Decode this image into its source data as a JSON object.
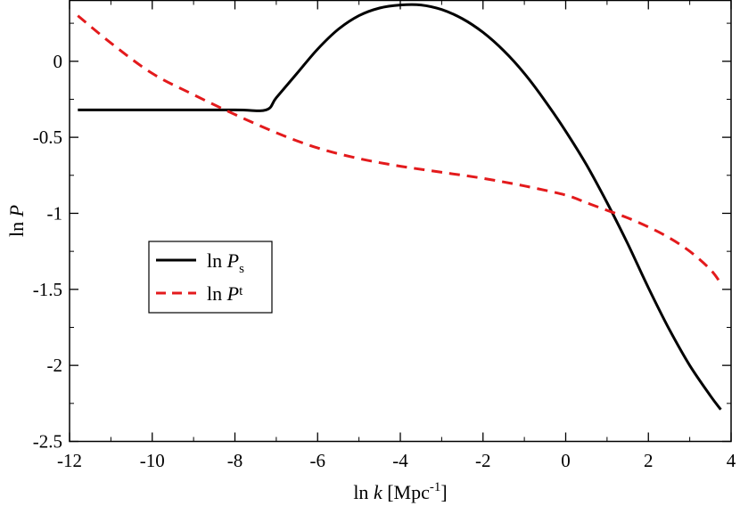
{
  "chart_data": {
    "type": "line",
    "xlabel_prefix": "ln ",
    "xlabel_var": "k",
    "xlabel_unit": " [Mpc",
    "xlabel_exp": "-1",
    "xlabel_close": "]",
    "ylabel_prefix": "ln ",
    "ylabel_var": "P",
    "xlim": [
      -12,
      4
    ],
    "ylim": [
      -2.5,
      0.4
    ],
    "x_ticks": [
      -12,
      -10,
      -8,
      -6,
      -4,
      -2,
      0,
      2,
      4
    ],
    "x_tick_labels": [
      "-12",
      "-10",
      "-8",
      "-6",
      "-4",
      "-2",
      "0",
      "2",
      "4"
    ],
    "y_ticks": [
      -2.5,
      -2,
      -1.5,
      -1,
      -0.5,
      0
    ],
    "y_tick_labels": [
      "-2.5",
      "-2",
      "-1.5",
      "-1",
      "-0.5",
      "0"
    ],
    "grid": false,
    "legend_position": "left-middle",
    "series": [
      {
        "name_prefix": "ln ",
        "name_var": "P",
        "name_sub": "s",
        "color": "#000000",
        "style": "solid",
        "x": [
          -11.8,
          -10,
          -8,
          -7.25,
          -7,
          -6.5,
          -6,
          -5.5,
          -5,
          -4.5,
          -4,
          -3.5,
          -3,
          -2.5,
          -2,
          -1.5,
          -1,
          -0.5,
          0,
          0.5,
          1,
          1.5,
          2,
          2.5,
          3,
          3.5,
          3.75
        ],
        "y": [
          -0.32,
          -0.32,
          -0.32,
          -0.32,
          -0.24,
          -0.08,
          0.08,
          0.21,
          0.3,
          0.35,
          0.37,
          0.37,
          0.34,
          0.28,
          0.19,
          0.07,
          -0.08,
          -0.26,
          -0.46,
          -0.68,
          -0.93,
          -1.2,
          -1.49,
          -1.76,
          -2.0,
          -2.2,
          -2.29
        ]
      },
      {
        "name_prefix": "ln ",
        "name_var": "P",
        "name_sub": "t",
        "color": "#e31a1c",
        "style": "dashed",
        "x": [
          -11.8,
          -11,
          -10,
          -9,
          -8,
          -7,
          -6,
          -5,
          -4,
          -3,
          -2,
          -1,
          0,
          0.5,
          1,
          1.5,
          2,
          2.5,
          3,
          3.5,
          3.75
        ],
        "y": [
          0.3,
          0.12,
          -0.08,
          -0.22,
          -0.35,
          -0.47,
          -0.57,
          -0.64,
          -0.69,
          -0.73,
          -0.77,
          -0.82,
          -0.88,
          -0.93,
          -0.98,
          -1.03,
          -1.09,
          -1.16,
          -1.25,
          -1.37,
          -1.46
        ]
      }
    ]
  }
}
